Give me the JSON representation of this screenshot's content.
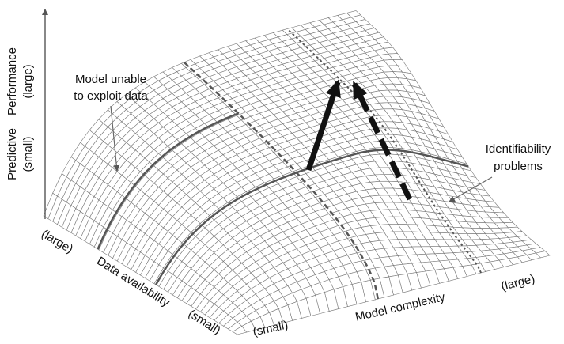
{
  "vertical_axis": {
    "title_parts": [
      "Predictive",
      "Performance"
    ],
    "low": "(small)",
    "high": "(large)"
  },
  "data_axis": {
    "title": "Data availability",
    "high": "(large)",
    "low": "(small)"
  },
  "complexity_axis": {
    "title": "Model complexity",
    "low": "(small)",
    "high": "(large)"
  },
  "annotations": [
    {
      "lines": [
        "Model unable",
        "to exploit data"
      ]
    },
    {
      "lines": [
        "Identifiability",
        "problems"
      ]
    }
  ]
}
